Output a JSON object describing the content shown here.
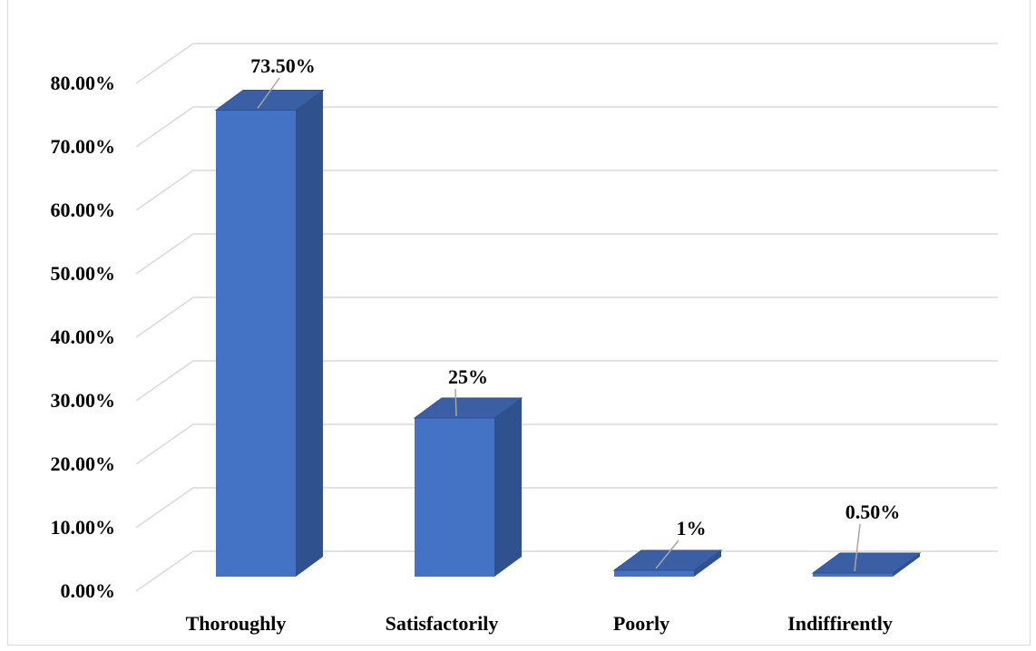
{
  "chart_data": {
    "type": "bar",
    "style": "3d-column",
    "title": "",
    "xlabel": "",
    "ylabel": "",
    "categories": [
      "Thoroughly",
      "Satisfactorily",
      "Poorly",
      "Indiffirently"
    ],
    "values": [
      0.735,
      0.25,
      0.01,
      0.005
    ],
    "data_labels": [
      "73.50%",
      "25%",
      "1%",
      "0.50%"
    ],
    "ylim": [
      0,
      0.8
    ],
    "yticks": [
      0,
      0.1,
      0.2,
      0.3,
      0.4,
      0.5,
      0.6,
      0.7,
      0.8
    ],
    "ytick_labels": [
      "0.00%",
      "10.00%",
      "20.00%",
      "30.00%",
      "40.00%",
      "50.00%",
      "60.00%",
      "70.00%",
      "80.00%"
    ],
    "grid": true,
    "legend": "none",
    "colors": {
      "bar_front": "#4472c4",
      "bar_side": "#2f528f",
      "bar_top": "#3a5fa5",
      "gridline": "#d9d9d9",
      "leader_line": "#a6a6a6"
    }
  }
}
